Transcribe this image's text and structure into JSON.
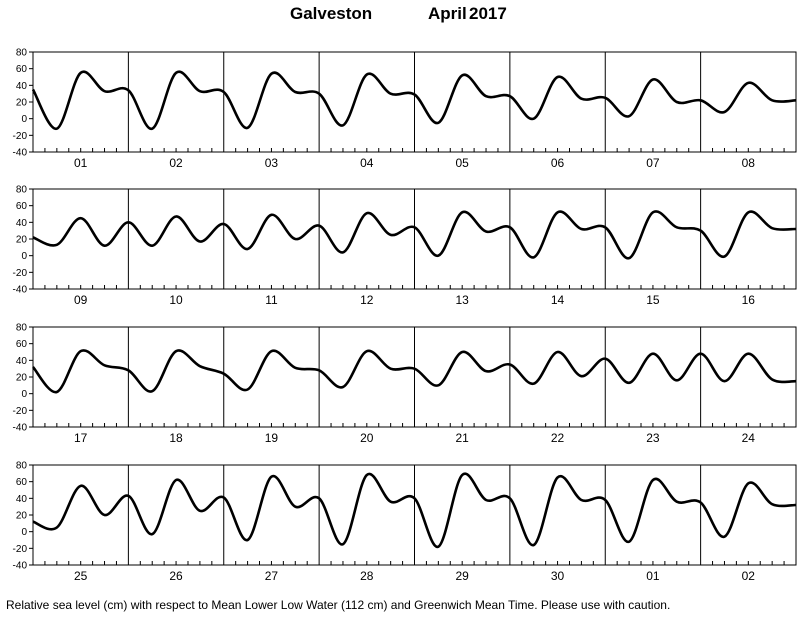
{
  "title": {
    "location": "Galveston",
    "month": "April",
    "year": "2017"
  },
  "footer": "Relative sea level (cm) with respect to Mean Lower Low Water (112 cm) and Greenwich Mean Time. Please use with caution.",
  "chart_data": {
    "type": "line",
    "ylim": [
      -40,
      80
    ],
    "yticks": [
      -40,
      -20,
      0,
      20,
      40,
      60,
      80
    ],
    "grid": false,
    "panels": [
      {
        "day_labels": [
          "01",
          "02",
          "03",
          "04",
          "05",
          "06",
          "07",
          "08"
        ],
        "series": [
          {
            "x_day_start": 1,
            "step_hours": 6,
            "values": [
              35,
              -12,
              55,
              33,
              34,
              -12,
              55,
              33,
              32,
              -11,
              54,
              32,
              30,
              -8,
              53,
              30,
              29,
              -5,
              52,
              27,
              27,
              0,
              50,
              24,
              25,
              3,
              47,
              20,
              22,
              8,
              43,
              22,
              22
            ]
          }
        ]
      },
      {
        "day_labels": [
          "09",
          "10",
          "11",
          "12",
          "13",
          "14",
          "15",
          "16"
        ],
        "series": [
          {
            "x_day_start": 9,
            "step_hours": 6,
            "values": [
              22,
              13,
              45,
              12,
              40,
              12,
              47,
              17,
              38,
              8,
              49,
              20,
              36,
              4,
              51,
              25,
              34,
              0,
              52,
              29,
              34,
              -2,
              52,
              32,
              34,
              -3,
              52,
              34,
              30,
              -1,
              52,
              33,
              32
            ]
          }
        ]
      },
      {
        "day_labels": [
          "17",
          "18",
          "19",
          "20",
          "21",
          "22",
          "23",
          "24"
        ],
        "series": [
          {
            "x_day_start": 17,
            "step_hours": 6,
            "values": [
              32,
              2,
              51,
              34,
              28,
              3,
              51,
              33,
              24,
              5,
              51,
              31,
              28,
              8,
              51,
              30,
              30,
              10,
              50,
              27,
              35,
              12,
              50,
              21,
              42,
              13,
              48,
              16,
              48,
              15,
              48,
              17,
              15
            ]
          }
        ]
      },
      {
        "day_labels": [
          "25",
          "26",
          "27",
          "28",
          "29",
          "30",
          "01",
          "02"
        ],
        "series": [
          {
            "x_day_start": 25,
            "step_hours": 6,
            "values": [
              12,
              5,
              55,
              20,
              43,
              -3,
              62,
              25,
              41,
              -10,
              66,
              30,
              40,
              -15,
              68,
              36,
              40,
              -18,
              68,
              38,
              40,
              -16,
              65,
              38,
              38,
              -12,
              62,
              36,
              35,
              -6,
              58,
              33,
              32
            ]
          }
        ]
      }
    ]
  }
}
